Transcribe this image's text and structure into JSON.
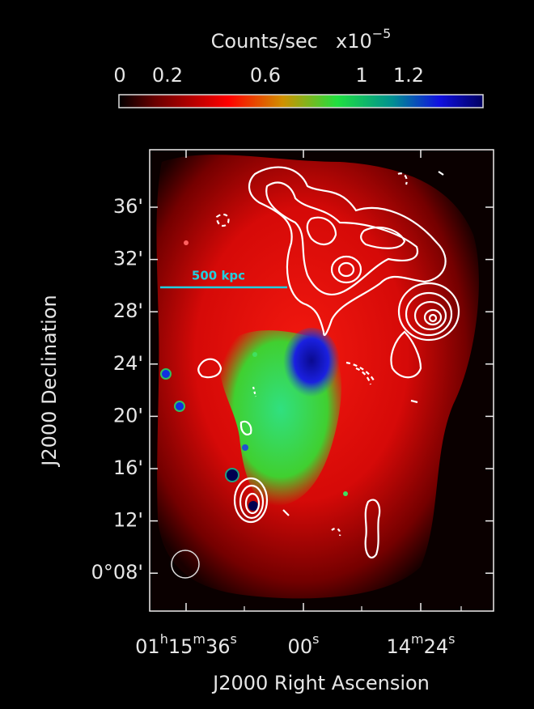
{
  "colorbar": {
    "label": "Counts/sec",
    "exponent_base": "x10",
    "exponent_power": "−5",
    "ticks": [
      "0",
      "0.2",
      "0.6",
      "1",
      "1.2"
    ]
  },
  "scale_bar": {
    "label": "500 kpc"
  },
  "y_axis": {
    "label": "J2000 Declination",
    "ticks": [
      "36'",
      "32'",
      "28'",
      "24'",
      "20'",
      "16'",
      "12'",
      "0°08'"
    ]
  },
  "x_axis": {
    "label": "J2000 Right Ascension",
    "ticks": [
      {
        "parts": [
          "01",
          "h",
          "15",
          "m",
          "36",
          "s"
        ]
      },
      {
        "parts": [
          "00",
          "s"
        ]
      },
      {
        "parts": [
          "14",
          "m",
          "24",
          "s"
        ]
      }
    ]
  }
}
